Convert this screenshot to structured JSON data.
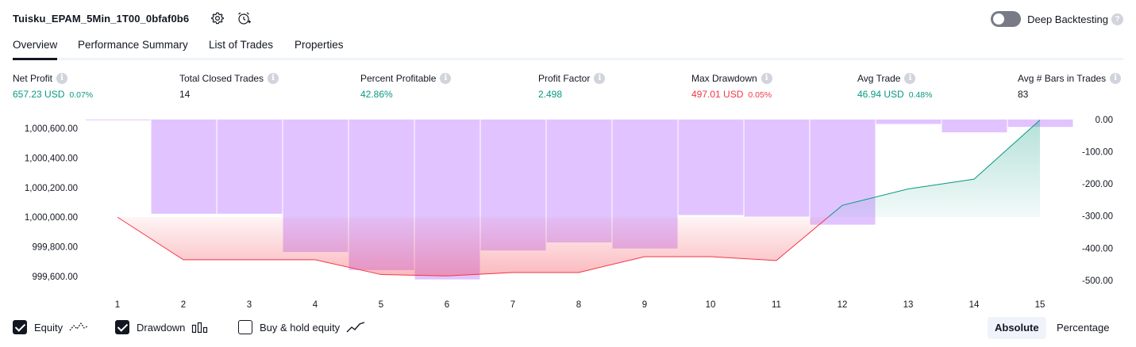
{
  "header": {
    "strategy_title": "Tuisku_EPAM_5Min_1T00_0bfaf0b6",
    "settings_icon": "gear-icon",
    "alert_icon": "alarm-clock-plus-icon",
    "deep_backtesting_label": "Deep Backtesting",
    "deep_backtesting_enabled": false,
    "help_icon": "question-icon"
  },
  "tabs": [
    {
      "label": "Overview",
      "active": true
    },
    {
      "label": "Performance Summary",
      "active": false
    },
    {
      "label": "List of Trades",
      "active": false
    },
    {
      "label": "Properties",
      "active": false
    }
  ],
  "metrics": [
    {
      "label": "Net Profit",
      "value": "657.23 USD",
      "pct": "0.07%",
      "color": "#089981"
    },
    {
      "label": "Total Closed Trades",
      "value": "14",
      "pct": "",
      "color": "#131722"
    },
    {
      "label": "Percent Profitable",
      "value": "42.86%",
      "pct": "",
      "color": "#089981"
    },
    {
      "label": "Profit Factor",
      "value": "2.498",
      "pct": "",
      "color": "#089981"
    },
    {
      "label": "Max Drawdown",
      "value": "497.01 USD",
      "pct": "0.05%",
      "color": "#f23645"
    },
    {
      "label": "Avg Trade",
      "value": "46.94 USD",
      "pct": "0.48%",
      "color": "#089981"
    },
    {
      "label": "Avg # Bars in Trades",
      "value": "83",
      "pct": "",
      "color": "#131722"
    }
  ],
  "chart_data": {
    "type": "line",
    "x": [
      1,
      2,
      3,
      4,
      5,
      6,
      7,
      8,
      9,
      10,
      11,
      12,
      13,
      14,
      15
    ],
    "x_tick_labels": [
      "1",
      "2",
      "3",
      "4",
      "5",
      "6",
      "7",
      "8",
      "9",
      "10",
      "11",
      "12",
      "13",
      "14",
      "15"
    ],
    "left_axis": {
      "tick_labels": [
        "1,000,600.00",
        "1,000,400.00",
        "1,000,200.00",
        "1,000,000.00",
        "999,800.00",
        "999,600.00"
      ],
      "ticks": [
        1000600,
        1000400,
        1000200,
        1000000,
        999800,
        999600
      ],
      "range": [
        999540,
        1000665
      ]
    },
    "right_axis": {
      "tick_labels": [
        "0.00",
        "-100.00",
        "-200.00",
        "-300.00",
        "-400.00",
        "-500.00"
      ],
      "ticks": [
        0,
        -100,
        -200,
        -300,
        -400,
        -500
      ],
      "range": [
        -515,
        2
      ]
    },
    "series": [
      {
        "name": "Equity",
        "axis": "left",
        "values": [
          1000000,
          999712,
          999712,
          999712,
          999612,
          999603,
          999626,
          999626,
          999733,
          999733,
          999707,
          1000080,
          1000191,
          1000257,
          1000657
        ],
        "colors": {
          "below_start": "#f23645",
          "above_start": "#089981"
        }
      },
      {
        "name": "Drawdown",
        "axis": "right",
        "type": "bar",
        "values": [
          -2,
          -293,
          -293,
          -412,
          -468,
          -497,
          -407,
          -382,
          -401,
          -297,
          -302,
          -327,
          -14,
          -40,
          -23
        ],
        "color": "#e1c4ff"
      }
    ],
    "grid": false
  },
  "legend": {
    "items": [
      {
        "label": "Equity",
        "checked": true,
        "icon": "equity-line-icon"
      },
      {
        "label": "Drawdown",
        "checked": true,
        "icon": "drawdown-bars-icon"
      },
      {
        "label": "Buy & hold equity",
        "checked": false,
        "icon": "buy-hold-line-icon"
      }
    ],
    "scale_modes": [
      {
        "label": "Absolute",
        "active": true
      },
      {
        "label": "Percentage",
        "active": false
      }
    ]
  }
}
